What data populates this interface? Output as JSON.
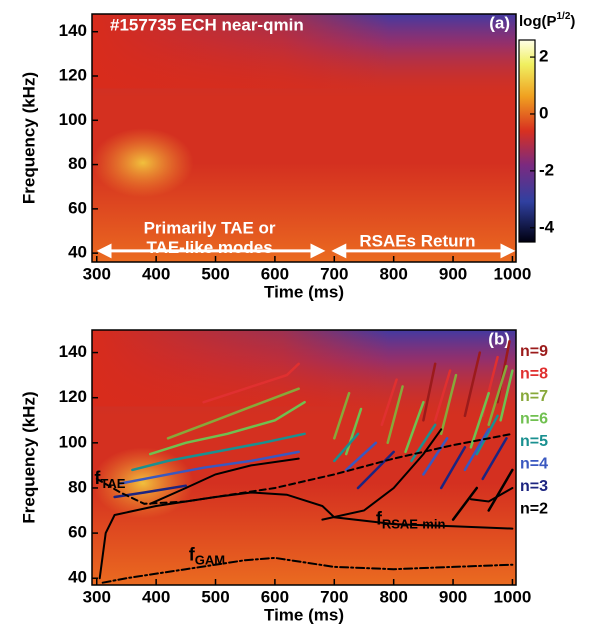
{
  "chart_data": [
    {
      "type": "spectrogram",
      "title": "#157735 ECH near-qmin",
      "panel_label": "(a)",
      "xlabel": "Time (ms)",
      "ylabel": "Frequency (kHz)",
      "xlim": [
        292,
        1006
      ],
      "ylim": [
        36,
        148
      ],
      "xticks": [
        300,
        400,
        500,
        600,
        700,
        800,
        900,
        1000
      ],
      "yticks": [
        40,
        60,
        80,
        100,
        120,
        140
      ],
      "colorbar": {
        "label": "log(P",
        "label_sup": "1/2",
        "label_tail": ")",
        "lim": [
          -4.5,
          2.6
        ],
        "ticks": [
          2,
          0,
          -2,
          -4
        ]
      },
      "annotations": [
        "Primarily TAE or",
        "TAE-like modes",
        "RSAEs Return"
      ]
    },
    {
      "type": "line",
      "panel_label": "(b)",
      "xlabel": "Time (ms)",
      "ylabel": "Frequency (kHz)",
      "xlim": [
        292,
        1006
      ],
      "ylim": [
        37,
        150
      ],
      "xticks": [
        300,
        400,
        500,
        600,
        700,
        800,
        900,
        1000
      ],
      "yticks": [
        40,
        60,
        80,
        100,
        120,
        140
      ],
      "legend": "right",
      "series": [
        {
          "name": "n=9",
          "color": "#9b1b1b",
          "x": [
            850,
            870,
            null,
            920,
            945,
            null,
            975,
            995
          ],
          "values": [
            110,
            135,
            null,
            112,
            140,
            null,
            118,
            145
          ]
        },
        {
          "name": "n=8",
          "color": "#e03030",
          "x": [
            480,
            550,
            620,
            640,
            null,
            780,
            805,
            null,
            870,
            895,
            null,
            950,
            975
          ],
          "values": [
            118,
            124,
            130,
            135,
            null,
            108,
            128,
            null,
            110,
            132,
            null,
            112,
            138
          ]
        },
        {
          "name": "n=7",
          "color": "#88a83a",
          "x": [
            420,
            500,
            560,
            640,
            null,
            700,
            725,
            null,
            790,
            815,
            null,
            880,
            905,
            null,
            960,
            990
          ],
          "values": [
            102,
            110,
            116,
            124,
            null,
            102,
            122,
            null,
            100,
            125,
            null,
            104,
            130,
            null,
            108,
            134
          ]
        },
        {
          "name": "n=6",
          "color": "#70c050",
          "x": [
            390,
            450,
            520,
            600,
            650,
            null,
            720,
            745,
            null,
            820,
            850,
            null,
            930,
            960,
            null,
            980,
            1000
          ],
          "values": [
            95,
            100,
            104,
            110,
            118,
            null,
            95,
            115,
            null,
            96,
            118,
            null,
            98,
            122,
            null,
            110,
            132
          ]
        },
        {
          "name": "n=5",
          "color": "#1a9090",
          "x": [
            360,
            420,
            500,
            580,
            650,
            null,
            700,
            740,
            null,
            830,
            870,
            null,
            940,
            975
          ],
          "values": [
            88,
            92,
            96,
            100,
            104,
            null,
            92,
            104,
            null,
            92,
            108,
            null,
            95,
            112
          ]
        },
        {
          "name": "n=4",
          "color": "#3a58c0",
          "x": [
            340,
            400,
            480,
            560,
            640,
            null,
            720,
            770,
            null,
            850,
            890,
            null,
            920,
            960
          ],
          "values": [
            82,
            85,
            89,
            92,
            96,
            null,
            88,
            100,
            null,
            86,
            102,
            null,
            88,
            106
          ]
        },
        {
          "name": "n=3",
          "color": "#1c2480",
          "x": [
            330,
            380,
            450,
            null,
            740,
            800,
            null,
            880,
            920,
            null,
            950,
            990
          ],
          "values": [
            76,
            78,
            81,
            null,
            80,
            96,
            null,
            80,
            98,
            null,
            84,
            102
          ]
        },
        {
          "name": "n=2",
          "color": "#000000",
          "x": [
            900,
            940,
            null,
            960,
            1000
          ],
          "values": [
            66,
            80,
            null,
            70,
            88
          ]
        },
        {
          "color": "#000000",
          "dash": "dashed",
          "x": [
            300,
            340,
            380,
            450,
            500,
            600,
            700,
            800,
            900,
            1000
          ],
          "values": [
            84,
            78,
            73,
            74,
            76,
            80,
            86,
            93,
            99,
            104
          ]
        },
        {
          "color": "#000000",
          "dash": "solid",
          "x": [
            305,
            315,
            330,
            400,
            500,
            560,
            620,
            680,
            700,
            800,
            900,
            1000
          ],
          "values": [
            40,
            60,
            68,
            72,
            76,
            78,
            77,
            72,
            67,
            64,
            63,
            62
          ]
        },
        {
          "color": "#000000",
          "dash": "solid",
          "x": [
            390,
            450,
            500,
            560,
            640,
            null,
            680,
            750,
            800,
            850,
            880,
            null,
            930,
            960,
            1000
          ],
          "values": [
            73,
            80,
            86,
            90,
            93,
            null,
            66,
            70,
            80,
            95,
            106,
            null,
            75,
            74,
            80
          ]
        },
        {
          "color": "#000000",
          "dash": "dashdot",
          "x": [
            310,
            350,
            450,
            550,
            600,
            700,
            800,
            900,
            1000
          ],
          "values": [
            38,
            40,
            44,
            48,
            49,
            45,
            44,
            45,
            46
          ]
        }
      ],
      "annotations": [
        {
          "text": "f",
          "sub": "TAE"
        },
        {
          "text": "f",
          "sub": "RSAE-min"
        },
        {
          "text": "f",
          "sub": "GAM"
        }
      ]
    }
  ]
}
